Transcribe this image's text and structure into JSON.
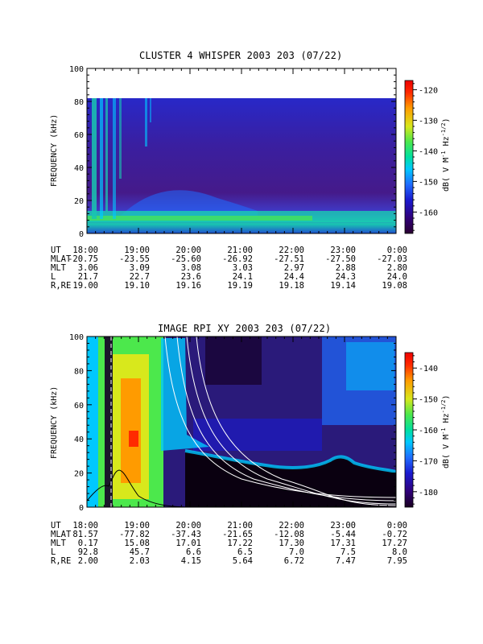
{
  "chart_data": [
    {
      "type": "heatmap",
      "title": "CLUSTER 4 WHISPER 2003 203 (07/22)",
      "ylabel": "FREQUENCY (kHz)",
      "ylim": [
        0,
        100
      ],
      "yticks": [
        "0",
        "20",
        "40",
        "60",
        "80",
        "100"
      ],
      "xticks": [
        "18:00",
        "19:00",
        "20:00",
        "21:00",
        "22:00",
        "23:00",
        "0:00"
      ],
      "colorbar": {
        "label": "dB( V M^-1 Hz^-1/2 )",
        "range": [
          -167,
          -117
        ],
        "ticks": [
          "-120",
          "-130",
          "-140",
          "-150",
          "-160"
        ],
        "colors": [
          "#2a0030",
          "#300078",
          "#1a1ad0",
          "#1f6cff",
          "#00c8ff",
          "#00e0a0",
          "#4ce84c",
          "#d8e81c",
          "#ff9b00",
          "#ff2a00",
          "#ee0000"
        ]
      },
      "ephemeris": {
        "labels": [
          "UT",
          "MLAT",
          "MLT",
          "L",
          "R,RE"
        ],
        "rows": [
          [
            "18:00",
            "19:00",
            "20:00",
            "21:00",
            "22:00",
            "23:00",
            "0:00"
          ],
          [
            "-20.75",
            "-23.55",
            "-25.60",
            "-26.92",
            "-27.51",
            "-27.50",
            "-27.03"
          ],
          [
            "3.06",
            "3.09",
            "3.08",
            "3.03",
            "2.97",
            "2.88",
            "2.80"
          ],
          [
            "21.7",
            "22.7",
            "23.6",
            "24.1",
            "24.4",
            "24.3",
            "24.0"
          ],
          [
            "19.00",
            "19.10",
            "19.16",
            "19.19",
            "19.18",
            "19.14",
            "19.08"
          ]
        ]
      }
    },
    {
      "type": "heatmap",
      "title": "IMAGE RPI XY 2003 203 (07/22)",
      "ylabel": "FREQUENCY (kHz)",
      "ylim": [
        0,
        100
      ],
      "yticks": [
        "0",
        "20",
        "40",
        "60",
        "80",
        "100"
      ],
      "xticks": [
        "18:00",
        "19:00",
        "20:00",
        "21:00",
        "22:00",
        "23:00",
        "0:00"
      ],
      "colorbar": {
        "label": "dB( V M^-1 Hz^-1/2 )",
        "range": [
          -185,
          -135
        ],
        "ticks": [
          "-140",
          "-150",
          "-160",
          "-170",
          "-180"
        ],
        "colors": [
          "#1a0020",
          "#300078",
          "#1a1ad0",
          "#1f6cff",
          "#00c8ff",
          "#00e0a0",
          "#4ce84c",
          "#d8e81c",
          "#ff9b00",
          "#ff2a00",
          "#ee0000"
        ]
      },
      "ephemeris": {
        "labels": [
          "UT",
          "MLAT",
          "MLT",
          "L",
          "R,RE"
        ],
        "rows": [
          [
            "18:00",
            "19:00",
            "20:00",
            "21:00",
            "22:00",
            "23:00",
            "0:00"
          ],
          [
            "81.57",
            "-77.82",
            "-37.43",
            "-21.65",
            "-12.08",
            "-5.44",
            "-0.72"
          ],
          [
            "0.17",
            "15.08",
            "17.01",
            "17.22",
            "17.30",
            "17.31",
            "17.27"
          ],
          [
            "92.8",
            "45.7",
            "6.6",
            "6.5",
            "7.0",
            "7.5",
            "8.0"
          ],
          [
            "2.00",
            "2.03",
            "4.15",
            "5.64",
            "6.72",
            "7.47",
            "7.95"
          ]
        ]
      }
    }
  ]
}
